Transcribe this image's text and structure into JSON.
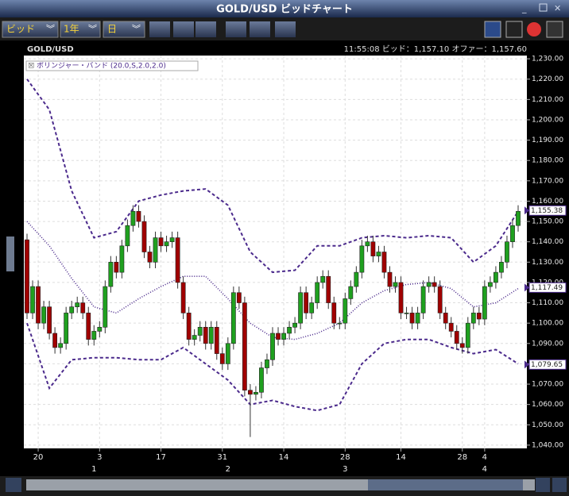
{
  "window": {
    "title": "GOLD/USD ビッドチャート",
    "toolbar": [
      "ビッド",
      "1年",
      "日"
    ]
  },
  "chart_data": {
    "type": "candlestick",
    "title": "GOLD/USD",
    "subtitle": "11:55:08  ビッド：1,157.10  オファー：1,157.60",
    "up_color": "#1fa01f",
    "down_color": "#a00000",
    "grid": true,
    "categories": [
      null,
      null,
      "20",
      null,
      null,
      null,
      null,
      null,
      null,
      null,
      null,
      null,
      null,
      "3",
      null,
      null,
      null,
      null,
      null,
      null,
      null,
      null,
      null,
      null,
      "17",
      null,
      null,
      null,
      null,
      null,
      null,
      null,
      null,
      null,
      null,
      "31",
      null,
      null,
      null,
      null,
      null,
      null,
      null,
      null,
      null,
      null,
      "14",
      null,
      null,
      null,
      null,
      null,
      null,
      null,
      null,
      null,
      null,
      "28",
      null,
      null,
      null,
      null,
      null,
      null,
      null,
      null,
      null,
      "14",
      null,
      null,
      null,
      null,
      null,
      null,
      null,
      null,
      null,
      null,
      "28",
      null,
      null,
      null,
      "4",
      null,
      null,
      null,
      null,
      null,
      null
    ],
    "months": [
      null,
      null,
      null,
      null,
      null,
      null,
      null,
      null,
      null,
      null,
      null,
      null,
      "1",
      null,
      null,
      null,
      null,
      null,
      null,
      null,
      null,
      null,
      null,
      null,
      null,
      null,
      null,
      null,
      null,
      null,
      null,
      null,
      null,
      null,
      null,
      null,
      "2",
      null,
      null,
      null,
      null,
      null,
      null,
      null,
      null,
      null,
      null,
      null,
      null,
      null,
      null,
      null,
      null,
      null,
      null,
      null,
      null,
      "3",
      null,
      null,
      null,
      null,
      null,
      null,
      null,
      null,
      null,
      null,
      null,
      null,
      null,
      null,
      null,
      null,
      null,
      null,
      null,
      null,
      null,
      null,
      null,
      null,
      "4",
      null,
      null,
      null,
      null,
      null,
      null
    ],
    "open": [
      1141,
      1105,
      1118,
      1100,
      1108,
      1095,
      1088,
      1090,
      1105,
      1108,
      1110,
      1105,
      1092,
      1096,
      1098,
      1118,
      1130,
      1125,
      1138,
      1148,
      1155,
      1150,
      1135,
      1130,
      1142,
      1138,
      1140,
      1142,
      1120,
      1105,
      1092,
      1094,
      1098,
      1090,
      1098,
      1085,
      1080,
      1090,
      1115,
      1110,
      1067,
      1065,
      1066,
      1078,
      1082,
      1095,
      1092,
      1095,
      1098,
      1100,
      1115,
      1105,
      1110,
      1120,
      1123,
      1110,
      1100,
      1100,
      1112,
      1118,
      1125,
      1138,
      1140,
      1133,
      1135,
      1125,
      1118,
      1120,
      1105,
      1105,
      1100,
      1105,
      1118,
      1120,
      1118,
      1105,
      1100,
      1096,
      1090,
      1088,
      1100,
      1105,
      1102,
      1118,
      1120,
      1125,
      1130,
      1140,
      1148
    ],
    "high": [
      1144,
      1121,
      1121,
      1111,
      1111,
      1098,
      1093,
      1108,
      1111,
      1113,
      1113,
      1108,
      1099,
      1101,
      1121,
      1133,
      1133,
      1141,
      1151,
      1158,
      1158,
      1153,
      1138,
      1145,
      1145,
      1143,
      1145,
      1145,
      1123,
      1108,
      1097,
      1101,
      1101,
      1101,
      1101,
      1088,
      1093,
      1118,
      1118,
      1113,
      1070,
      1069,
      1081,
      1085,
      1098,
      1098,
      1098,
      1101,
      1103,
      1118,
      1118,
      1113,
      1123,
      1126,
      1126,
      1113,
      1103,
      1115,
      1121,
      1128,
      1141,
      1143,
      1143,
      1138,
      1138,
      1128,
      1123,
      1123,
      1108,
      1108,
      1108,
      1121,
      1123,
      1123,
      1121,
      1108,
      1103,
      1099,
      1093,
      1103,
      1108,
      1108,
      1121,
      1123,
      1128,
      1133,
      1143,
      1151,
      1158
    ],
    "low": [
      1102,
      1102,
      1097,
      1097,
      1092,
      1085,
      1085,
      1087,
      1102,
      1105,
      1102,
      1089,
      1089,
      1093,
      1095,
      1115,
      1122,
      1122,
      1135,
      1145,
      1147,
      1132,
      1127,
      1127,
      1135,
      1135,
      1137,
      1117,
      1102,
      1089,
      1089,
      1091,
      1087,
      1087,
      1082,
      1077,
      1077,
      1087,
      1107,
      1064,
      1044,
      1062,
      1063,
      1075,
      1079,
      1089,
      1089,
      1092,
      1095,
      1097,
      1102,
      1102,
      1107,
      1117,
      1107,
      1097,
      1097,
      1097,
      1109,
      1115,
      1122,
      1135,
      1130,
      1130,
      1122,
      1115,
      1115,
      1102,
      1102,
      1097,
      1097,
      1102,
      1115,
      1115,
      1102,
      1097,
      1093,
      1087,
      1085,
      1085,
      1097,
      1099,
      1099,
      1115,
      1117,
      1122,
      1127,
      1137,
      1145
    ],
    "close": [
      1105,
      1118,
      1100,
      1108,
      1095,
      1088,
      1090,
      1105,
      1108,
      1110,
      1105,
      1092,
      1096,
      1098,
      1118,
      1130,
      1125,
      1138,
      1148,
      1155,
      1150,
      1135,
      1130,
      1142,
      1138,
      1140,
      1142,
      1120,
      1105,
      1092,
      1094,
      1098,
      1090,
      1098,
      1085,
      1080,
      1090,
      1115,
      1110,
      1067,
      1065,
      1066,
      1078,
      1082,
      1095,
      1092,
      1095,
      1098,
      1100,
      1115,
      1105,
      1110,
      1120,
      1123,
      1110,
      1100,
      1100,
      1112,
      1118,
      1125,
      1138,
      1140,
      1133,
      1135,
      1125,
      1118,
      1120,
      1105,
      1105,
      1100,
      1105,
      1118,
      1120,
      1118,
      1105,
      1100,
      1096,
      1090,
      1088,
      1100,
      1105,
      1102,
      1118,
      1120,
      1125,
      1130,
      1140,
      1148,
      1155
    ],
    "overlay": {
      "label": "ボリンジャー・バンド (20.0,S,2.0,2.0)",
      "color": "#4b2a8c",
      "x": [
        0,
        4,
        8,
        12,
        16,
        20,
        24,
        28,
        32,
        36,
        40,
        44,
        48,
        52,
        56,
        60,
        64,
        68,
        72,
        76,
        80,
        84,
        88
      ],
      "upper": [
        1220,
        1205,
        1165,
        1142,
        1145,
        1160,
        1163,
        1165,
        1166,
        1158,
        1135,
        1125,
        1126,
        1138,
        1138,
        1142,
        1143,
        1142,
        1143,
        1142,
        1130,
        1138,
        1155
      ],
      "middle": [
        1150,
        1138,
        1122,
        1108,
        1105,
        1112,
        1118,
        1123,
        1123,
        1112,
        1100,
        1093,
        1092,
        1095,
        1100,
        1110,
        1116,
        1119,
        1120,
        1117,
        1108,
        1110,
        1117
      ],
      "lower": [
        1100,
        1068,
        1082,
        1083,
        1083,
        1082,
        1082,
        1088,
        1080,
        1072,
        1060,
        1062,
        1059,
        1057,
        1060,
        1080,
        1090,
        1092,
        1092,
        1088,
        1085,
        1087,
        1080
      ]
    },
    "price_tags": [
      {
        "value": 1155.38,
        "label": "1,155.38"
      },
      {
        "value": 1117.49,
        "label": "1,117.49"
      },
      {
        "value": 1079.65,
        "label": "1,079.65"
      }
    ],
    "ylim": [
      1038.4,
      1231.6
    ],
    "yticks": [
      {
        "value": 1040,
        "label": "1,040.00"
      },
      {
        "value": 1050,
        "label": "1,050.00"
      },
      {
        "value": 1060,
        "label": "1,060.00"
      },
      {
        "value": 1070,
        "label": "1,070.00"
      },
      {
        "value": 1080,
        "label": "1,080.00"
      },
      {
        "value": 1090,
        "label": "1,090.00"
      },
      {
        "value": 1100,
        "label": "1,100.00"
      },
      {
        "value": 1110,
        "label": "1,110.00"
      },
      {
        "value": 1120,
        "label": "1,120.00"
      },
      {
        "value": 1130,
        "label": "1,130.00"
      },
      {
        "value": 1140,
        "label": "1,140.00"
      },
      {
        "value": 1150,
        "label": "1,150.00"
      },
      {
        "value": 1160,
        "label": "1,160.00"
      },
      {
        "value": 1170,
        "label": "1,170.00"
      },
      {
        "value": 1180,
        "label": "1,180.00"
      },
      {
        "value": 1190,
        "label": "1,190.00"
      },
      {
        "value": 1200,
        "label": "1,200.00"
      },
      {
        "value": 1210,
        "label": "1,210.00"
      },
      {
        "value": 1220,
        "label": "1,220.00"
      },
      {
        "value": 1230,
        "label": "1,230.00"
      }
    ]
  }
}
